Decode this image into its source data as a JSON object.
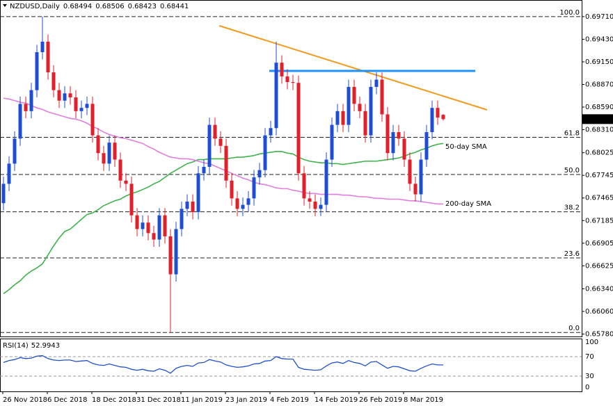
{
  "chart_data": {
    "type": "candlestick",
    "title": "NZDUSD,Daily",
    "up_color": "#1f4fd0",
    "down_color": "#e3202a",
    "ylim": [
      0.6575,
      0.6989
    ],
    "yticks": [
      {
        "value": 0.6971,
        "label": "0.69710"
      },
      {
        "value": 0.6943,
        "label": "0.69430"
      },
      {
        "value": 0.6915,
        "label": "0.69150"
      },
      {
        "value": 0.6887,
        "label": "0.68870"
      },
      {
        "value": 0.6859,
        "label": "0.68590"
      },
      {
        "value": 0.6831,
        "label": "0.68310"
      },
      0.68025,
      0.67745,
      0.67465,
      0.67185,
      0.66905,
      0.66625,
      {
        "value": 0.6634,
        "label": "0.66340"
      },
      {
        "value": 0.6606,
        "label": "0.66060"
      },
      {
        "value": 0.6578,
        "label": "0.65780"
      }
    ],
    "x_labels": [
      "26 Nov 2018",
      "6 Dec 2018",
      "18 Dec 2018",
      "31 Dec 2018",
      "11 Jan 2019",
      "23 Jan 2019",
      "4 Feb 2019",
      "14 Feb 2019",
      "26 Feb 2019",
      "8 Mar 2019"
    ],
    "open": [
      0.674,
      0.6764,
      0.6789,
      0.682,
      0.6863,
      0.6854,
      0.688,
      0.6927,
      0.694,
      0.6902,
      0.688,
      0.6867,
      0.6876,
      0.6871,
      0.6854,
      0.6858,
      0.6863,
      0.6824,
      0.6802,
      0.6789,
      0.6815,
      0.6794,
      0.6768,
      0.6764,
      0.6725,
      0.6708,
      0.6716,
      0.6703,
      0.6695,
      0.6725,
      0.6699,
      0.6652,
      0.6708,
      0.6733,
      0.6742,
      0.6729,
      0.6777,
      0.6785,
      0.6837,
      0.682,
      0.6811,
      0.6768,
      0.6746,
      0.6733,
      0.6738,
      0.6746,
      0.6772,
      0.6781,
      0.6824,
      0.6833,
      0.6914,
      0.6897,
      0.689,
      0.6889,
      0.6777,
      0.6746,
      0.6742,
      0.6733,
      0.6738,
      0.6794,
      0.6837,
      0.6854,
      0.6837,
      0.6884,
      0.6863,
      0.6854,
      0.6824,
      0.6884,
      0.6893,
      0.685,
      0.6802,
      0.6828,
      0.682,
      0.6794,
      0.6764,
      0.6751,
      0.6794,
      0.6828,
      0.6858,
      0.68494
    ],
    "high": [
      0.6773,
      0.6798,
      0.6829,
      0.6872,
      0.6872,
      0.6889,
      0.6936,
      0.6971,
      0.6949,
      0.6911,
      0.6889,
      0.6885,
      0.6885,
      0.688,
      0.6867,
      0.6872,
      0.6872,
      0.6833,
      0.6811,
      0.6824,
      0.6824,
      0.6803,
      0.6777,
      0.6773,
      0.6734,
      0.6725,
      0.6725,
      0.6712,
      0.6734,
      0.6734,
      0.6708,
      0.6717,
      0.6742,
      0.6751,
      0.6751,
      0.6786,
      0.6794,
      0.6846,
      0.6846,
      0.6829,
      0.682,
      0.6777,
      0.6755,
      0.6747,
      0.6755,
      0.6781,
      0.679,
      0.6833,
      0.6842,
      0.694,
      0.6923,
      0.6906,
      0.6899,
      0.6898,
      0.6786,
      0.6755,
      0.6751,
      0.6747,
      0.6803,
      0.6846,
      0.6863,
      0.6863,
      0.6893,
      0.6893,
      0.6872,
      0.6863,
      0.6893,
      0.6902,
      0.6902,
      0.6859,
      0.6837,
      0.6837,
      0.6829,
      0.6803,
      0.6773,
      0.6803,
      0.6837,
      0.6867,
      0.6867,
      0.68506
    ],
    "low": [
      0.6731,
      0.6755,
      0.678,
      0.6811,
      0.6845,
      0.6845,
      0.6871,
      0.6918,
      0.6893,
      0.6871,
      0.6858,
      0.6858,
      0.6862,
      0.6845,
      0.6845,
      0.6849,
      0.6815,
      0.6793,
      0.678,
      0.678,
      0.6785,
      0.6759,
      0.6755,
      0.6716,
      0.6699,
      0.6699,
      0.6694,
      0.6686,
      0.6686,
      0.669,
      0.658,
      0.6643,
      0.6699,
      0.6724,
      0.672,
      0.672,
      0.6768,
      0.6776,
      0.6811,
      0.6802,
      0.6759,
      0.6737,
      0.6724,
      0.6724,
      0.6729,
      0.6737,
      0.6763,
      0.6772,
      0.6815,
      0.6824,
      0.6888,
      0.6881,
      0.688,
      0.6768,
      0.6737,
      0.6733,
      0.6724,
      0.6724,
      0.6729,
      0.6785,
      0.6828,
      0.6828,
      0.6828,
      0.6854,
      0.6845,
      0.6815,
      0.6815,
      0.6875,
      0.6841,
      0.6793,
      0.6793,
      0.6811,
      0.6785,
      0.6755,
      0.6742,
      0.6742,
      0.6785,
      0.6819,
      0.6837,
      0.68423
    ],
    "close": [
      0.6764,
      0.6789,
      0.682,
      0.6863,
      0.6854,
      0.688,
      0.6927,
      0.694,
      0.6902,
      0.688,
      0.6867,
      0.6876,
      0.6871,
      0.6854,
      0.6858,
      0.6863,
      0.6824,
      0.6802,
      0.6789,
      0.6815,
      0.6794,
      0.6768,
      0.6764,
      0.6725,
      0.6708,
      0.6716,
      0.6703,
      0.6695,
      0.6725,
      0.6699,
      0.6652,
      0.6708,
      0.6733,
      0.6742,
      0.6729,
      0.6777,
      0.6785,
      0.6837,
      0.682,
      0.6811,
      0.6768,
      0.6746,
      0.6733,
      0.6738,
      0.6746,
      0.6772,
      0.6781,
      0.6824,
      0.6833,
      0.6914,
      0.6897,
      0.689,
      0.6889,
      0.6777,
      0.6746,
      0.6742,
      0.6733,
      0.6738,
      0.6794,
      0.6837,
      0.6854,
      0.6837,
      0.6884,
      0.6863,
      0.6854,
      0.6824,
      0.6884,
      0.6893,
      0.685,
      0.6802,
      0.6828,
      0.682,
      0.6794,
      0.6764,
      0.6751,
      0.6794,
      0.6828,
      0.6858,
      0.6846,
      0.68441
    ],
    "sma": [
      {
        "name": "50-day SMA",
        "color": "#3db34a",
        "values": [
          0.6628,
          0.6633,
          0.6639,
          0.6644,
          0.6651,
          0.6656,
          0.666,
          0.6665,
          0.6676,
          0.6687,
          0.6697,
          0.6705,
          0.6708,
          0.6714,
          0.672,
          0.6726,
          0.6728,
          0.6732,
          0.6737,
          0.674,
          0.6743,
          0.6745,
          0.6749,
          0.6752,
          0.6754,
          0.6757,
          0.676,
          0.6764,
          0.6767,
          0.6772,
          0.6777,
          0.6781,
          0.6785,
          0.6789,
          0.6791,
          0.6794,
          0.6794,
          0.6795,
          0.6795,
          0.6795,
          0.6795,
          0.6796,
          0.6797,
          0.6797,
          0.6798,
          0.6799,
          0.6801,
          0.6802,
          0.6803,
          0.6804,
          0.6804,
          0.6802,
          0.6801,
          0.6797,
          0.6794,
          0.6792,
          0.6791,
          0.679,
          0.679,
          0.6789,
          0.6789,
          0.6788,
          0.6789,
          0.679,
          0.6791,
          0.6792,
          0.6792,
          0.6792,
          0.6793,
          0.6794,
          0.6795,
          0.6796,
          0.6798,
          0.6801,
          0.6803,
          0.6806,
          0.6808,
          0.6811,
          0.6813,
          0.6814
        ]
      },
      {
        "name": "200-day SMA",
        "color": "#e27fdc",
        "values": [
          0.687,
          0.6869,
          0.6867,
          0.6865,
          0.6864,
          0.6861,
          0.6858,
          0.6856,
          0.6853,
          0.6851,
          0.6849,
          0.6847,
          0.6845,
          0.6844,
          0.6842,
          0.6839,
          0.6835,
          0.6832,
          0.6828,
          0.6825,
          0.6823,
          0.6821,
          0.682,
          0.6818,
          0.6816,
          0.6814,
          0.681,
          0.6807,
          0.6803,
          0.68,
          0.6797,
          0.6796,
          0.6795,
          0.6795,
          0.6794,
          0.6792,
          0.679,
          0.6789,
          0.6786,
          0.6783,
          0.678,
          0.6777,
          0.6774,
          0.6771,
          0.6769,
          0.6766,
          0.6764,
          0.6763,
          0.6761,
          0.6759,
          0.6758,
          0.6758,
          0.6756,
          0.6755,
          0.6753,
          0.6752,
          0.6752,
          0.6751,
          0.6751,
          0.6751,
          0.6751,
          0.675,
          0.675,
          0.6749,
          0.6748,
          0.6748,
          0.6747,
          0.6746,
          0.6746,
          0.6745,
          0.6745,
          0.6745,
          0.6744,
          0.6743,
          0.6743,
          0.6742,
          0.6741,
          0.674,
          0.6739,
          0.6739
        ]
      }
    ],
    "fibo": {
      "low": 0.658,
      "high": 0.6971,
      "color": "#222222",
      "levels": [
        {
          "value": 100,
          "label": "100.0"
        },
        61.8,
        {
          "value": 50,
          "label": "50.0"
        },
        38.2,
        23.6,
        {
          "value": 0,
          "label": "0.0"
        }
      ]
    },
    "rsi": {
      "title": "RSI(14)",
      "color": "#1f4fd0",
      "ylim": [
        0,
        100
      ],
      "yticks": [
        0,
        30,
        70,
        100
      ],
      "values": [
        58,
        62,
        64,
        68,
        66,
        67,
        71,
        72,
        66,
        63,
        62,
        63,
        63,
        60,
        61,
        62,
        56,
        53,
        52,
        55,
        52,
        49,
        48,
        44,
        42,
        44,
        41,
        40,
        45,
        42,
        36,
        46,
        50,
        52,
        50,
        57,
        58,
        64,
        61,
        59,
        53,
        50,
        48,
        49,
        51,
        55,
        56,
        61,
        62,
        70,
        66,
        65,
        65,
        48,
        44,
        43,
        42,
        43,
        51,
        57,
        59,
        56,
        62,
        58,
        56,
        51,
        59,
        60,
        53,
        46,
        50,
        49,
        45,
        41,
        40,
        46,
        51,
        55,
        53,
        52.9943
      ]
    }
  }
}
